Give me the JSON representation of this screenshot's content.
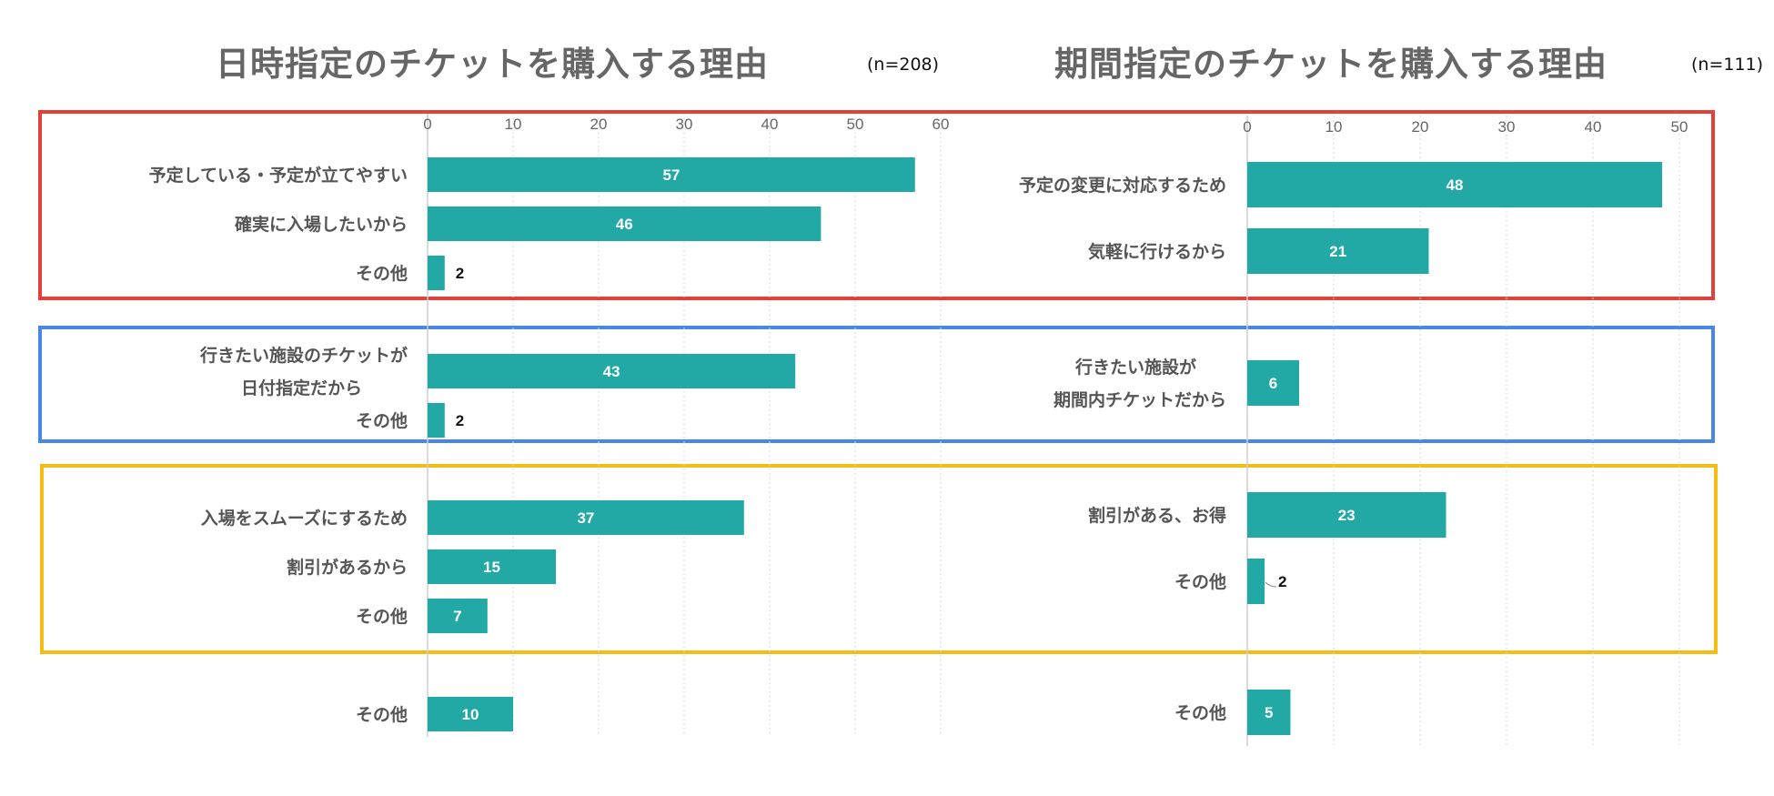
{
  "colors": {
    "bar": "#22a9a5",
    "red": "#e0413a",
    "blue": "#4a86e8",
    "yellow": "#f4bd14",
    "grid": "#d9d9d9",
    "axis": "#cfcfcf"
  },
  "chart_data": [
    {
      "type": "bar",
      "orientation": "horizontal",
      "title": "日時指定のチケットを購入する理由",
      "n_label": "(n=208)",
      "xlim": [
        0,
        60
      ],
      "xticks": [
        0,
        10,
        20,
        30,
        40,
        50,
        60
      ],
      "groups": [
        {
          "frame": "red",
          "items": [
            {
              "label": "予定している・予定が立てやすい",
              "value": 57
            },
            {
              "label": "確実に入場したいから",
              "value": 46
            },
            {
              "label": "その他",
              "value": 2
            }
          ]
        },
        {
          "frame": "blue",
          "items": [
            {
              "label": "行きたい施設のチケットが\n日付指定だから",
              "value": 43
            },
            {
              "label": "その他",
              "value": 2
            }
          ]
        },
        {
          "frame": "yellow",
          "items": [
            {
              "label": "入場をスムーズにするため",
              "value": 37
            },
            {
              "label": "割引があるから",
              "value": 15
            },
            {
              "label": "その他",
              "value": 7
            }
          ]
        },
        {
          "frame": "none",
          "items": [
            {
              "label": "その他",
              "value": 10
            }
          ]
        }
      ]
    },
    {
      "type": "bar",
      "orientation": "horizontal",
      "title": "期間指定のチケットを購入する理由",
      "n_label": "(n=111)",
      "xlim": [
        0,
        50
      ],
      "xticks": [
        0,
        10,
        20,
        30,
        40,
        50
      ],
      "groups": [
        {
          "frame": "red",
          "items": [
            {
              "label": "予定の変更に対応するため",
              "value": 48
            },
            {
              "label": "気軽に行けるから",
              "value": 21
            }
          ]
        },
        {
          "frame": "blue",
          "items": [
            {
              "label": "行きたい施設が\n期間内チケットだから",
              "value": 6
            }
          ]
        },
        {
          "frame": "yellow",
          "items": [
            {
              "label": "割引がある、お得",
              "value": 23
            },
            {
              "label": "その他",
              "value": 2
            }
          ]
        },
        {
          "frame": "none",
          "items": [
            {
              "label": "その他",
              "value": 5
            }
          ]
        }
      ]
    }
  ]
}
